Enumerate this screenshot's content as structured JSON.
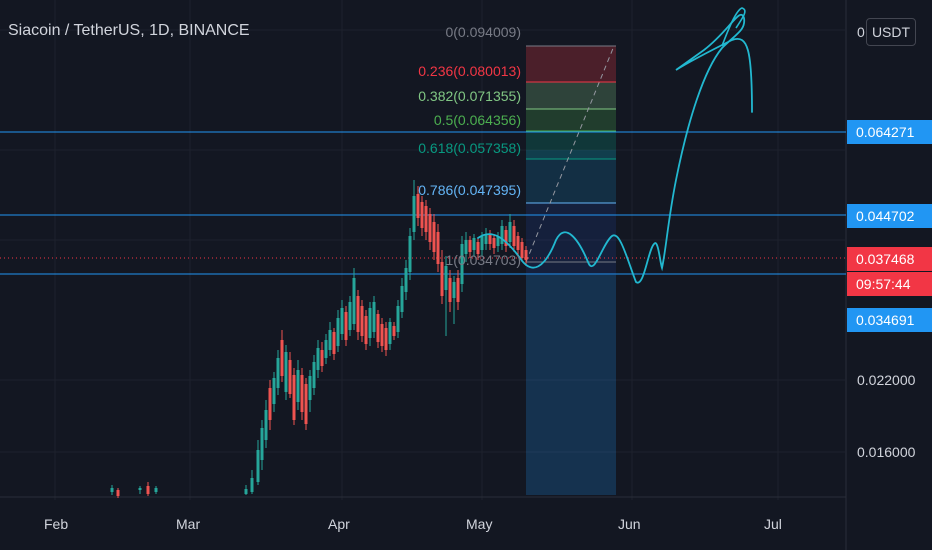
{
  "header": {
    "title": "Siacoin / TetherUS, 1D, BINANCE",
    "currency_button": "USDT"
  },
  "colors": {
    "background": "#131722",
    "up": "#26a69a",
    "down": "#ef5350",
    "drawing": "#22b8d0",
    "hline": "#2196f3"
  },
  "price_tags": {
    "level_1": "0.064271",
    "level_2": "0.044702",
    "current": "0.037468",
    "countdown": "09:57:44",
    "level_3": "0.034691"
  },
  "y_axis_labels": [
    "0",
    "0.022000",
    "0.016000"
  ],
  "x_axis_labels": [
    "Feb",
    "Mar",
    "Apr",
    "May",
    "Jun",
    "Jul"
  ],
  "fib_labels": [
    {
      "text": "0(0.094009)",
      "color": "#787b86"
    },
    {
      "text": "0.236(0.080013)",
      "color": "#f23645"
    },
    {
      "text": "0.382(0.071355)",
      "color": "#81c784"
    },
    {
      "text": "0.5(0.064356)",
      "color": "#4caf50"
    },
    {
      "text": "0.618(0.057358)",
      "color": "#089981"
    },
    {
      "text": "0.786(0.047395)",
      "color": "#64b5f6"
    },
    {
      "text": "1(0.034703)",
      "color": "#787b86"
    }
  ],
  "chart_data": {
    "type": "candlestick",
    "symbol": "Siacoin / TetherUS",
    "interval": "1D",
    "exchange": "BINANCE",
    "x_axis": [
      "Feb",
      "Mar",
      "Apr",
      "May",
      "Jun",
      "Jul"
    ],
    "horizontal_levels": [
      0.064271,
      0.044702,
      0.034691
    ],
    "current_price": 0.037468,
    "fib_levels": [
      {
        "ratio": 0,
        "price": 0.094009
      },
      {
        "ratio": 0.236,
        "price": 0.080013
      },
      {
        "ratio": 0.382,
        "price": 0.071355
      },
      {
        "ratio": 0.5,
        "price": 0.064356
      },
      {
        "ratio": 0.618,
        "price": 0.057358
      },
      {
        "ratio": 0.786,
        "price": 0.047395
      },
      {
        "ratio": 1,
        "price": 0.034703
      }
    ]
  }
}
